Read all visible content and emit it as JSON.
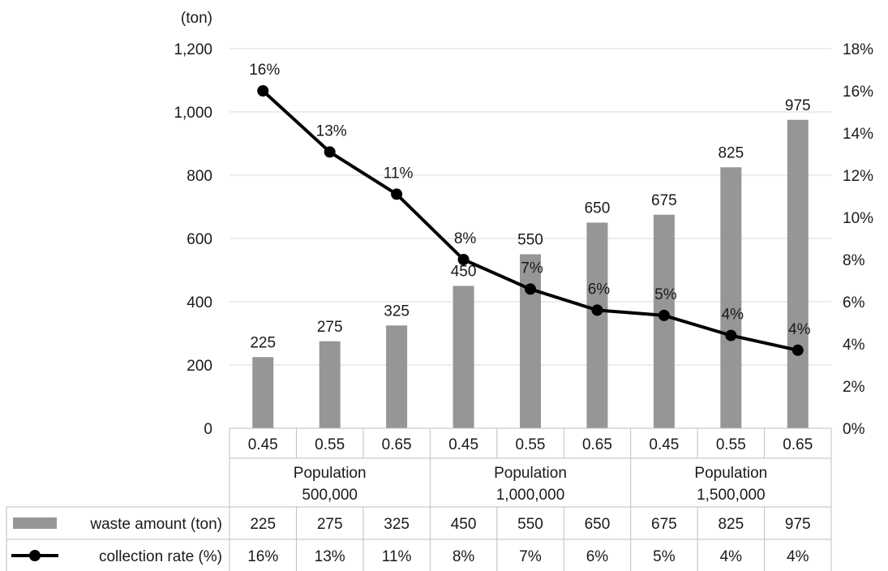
{
  "chart_data": {
    "type": "bar",
    "y_unit_label": "(ton)",
    "x_groups": [
      {
        "label_line1": "Population",
        "label_line2": "500,000",
        "categories": [
          "0.45",
          "0.55",
          "0.65"
        ]
      },
      {
        "label_line1": "Population",
        "label_line2": "1,000,000",
        "categories": [
          "0.45",
          "0.55",
          "0.65"
        ]
      },
      {
        "label_line1": "Population",
        "label_line2": "1,500,000",
        "categories": [
          "0.45",
          "0.55",
          "0.65"
        ]
      }
    ],
    "y_left": {
      "min": 0,
      "max": 1200,
      "ticks": [
        "0",
        "200",
        "400",
        "600",
        "800",
        "1,000",
        "1,200"
      ]
    },
    "y_right": {
      "min": 0,
      "max": 18,
      "ticks": [
        "0%",
        "2%",
        "4%",
        "6%",
        "8%",
        "10%",
        "12%",
        "14%",
        "16%",
        "18%"
      ]
    },
    "grid": true,
    "series": [
      {
        "name": "waste amount (ton)",
        "kind": "bar",
        "axis": "left",
        "color": "#969696",
        "values": [
          225,
          275,
          325,
          450,
          550,
          650,
          675,
          825,
          975
        ],
        "labels": [
          "225",
          "275",
          "325",
          "450",
          "550",
          "650",
          "675",
          "825",
          "975"
        ]
      },
      {
        "name": "collection rate (%)",
        "kind": "line",
        "axis": "right",
        "color": "#000000",
        "values": [
          16.0,
          13.1,
          11.1,
          8.0,
          6.6,
          5.6,
          5.35,
          4.4,
          3.7
        ],
        "labels": [
          "16%",
          "13%",
          "11%",
          "8%",
          "7%",
          "6%",
          "5%",
          "4%",
          "4%"
        ]
      }
    ],
    "legend": "data-table"
  }
}
